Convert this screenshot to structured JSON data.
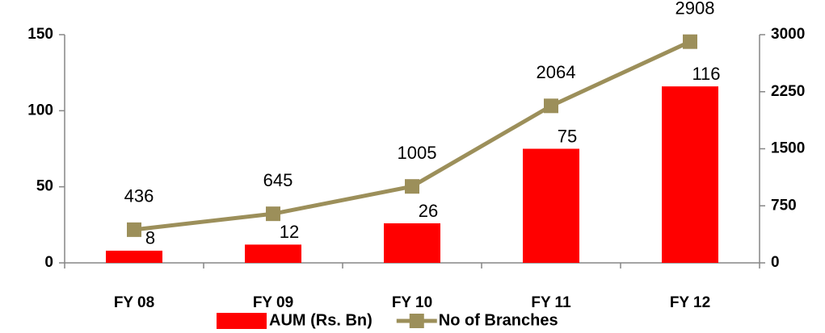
{
  "chart_data": {
    "type": "bar",
    "categories": [
      "FY 08",
      "FY 09",
      "FY 10",
      "FY 11",
      "FY 12"
    ],
    "series": [
      {
        "name": "AUM (Rs. Bn)",
        "type": "bar",
        "color": "#ff0000",
        "values": [
          8,
          12,
          26,
          75,
          116
        ]
      },
      {
        "name": "No of Branches",
        "type": "line",
        "axis": "y2",
        "color": "#9c8f5a",
        "values": [
          436,
          645,
          1005,
          2064,
          2908
        ]
      }
    ],
    "ylim": [
      0,
      150
    ],
    "yticks": [
      0,
      50,
      100,
      150
    ],
    "y2lim": [
      0,
      3000
    ],
    "y2ticks": [
      0,
      750,
      1500,
      2250,
      3000
    ],
    "legend": "bottom"
  }
}
